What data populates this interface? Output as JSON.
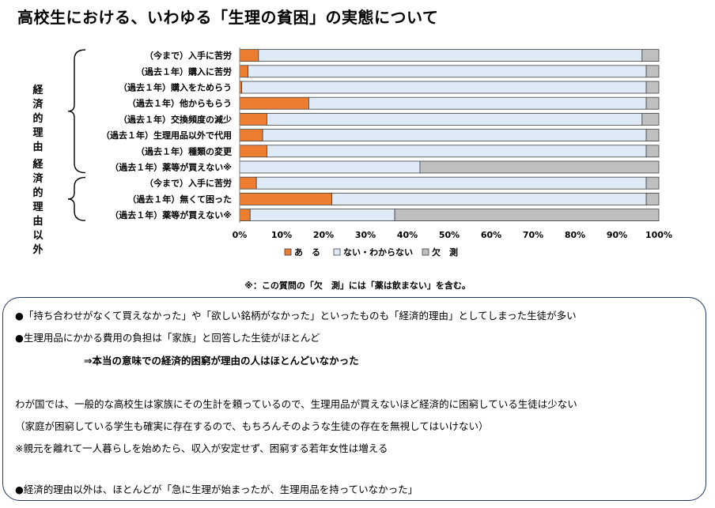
{
  "title": "高校生における、いわゆる「生理の貧困」の実態について",
  "chart_data": {
    "type": "bar",
    "orientation": "horizontal",
    "stacked": true,
    "categories": [
      "（今まで）入手に苦労",
      "（過去１年）購入に苦労",
      "（過去１年）購入をためらう",
      "（過去１年）他からもらう",
      "（過去１年）交換頻度の減少",
      "（過去１年）生理用品以外で代用",
      "（過去１年）種類の変更",
      "（過去１年）薬等が買えない※",
      "（今まで）入手に苦労",
      "（過去１年）無くて困った",
      "（過去１年）薬等が買えない※"
    ],
    "series": [
      {
        "name": "あ　る",
        "color": "#ED7D31",
        "values": [
          4.5,
          2,
          0.5,
          16.5,
          6.5,
          5.5,
          6.5,
          0,
          4,
          22,
          2.5
        ]
      },
      {
        "name": "ない・わからない",
        "color": "#DEEBF7",
        "values": [
          91.5,
          95,
          96.5,
          80.5,
          89.5,
          91.5,
          90.5,
          43,
          93,
          75,
          34.5
        ]
      },
      {
        "name": "欠　測",
        "color": "#BFBFBF",
        "values": [
          4,
          3,
          3,
          3,
          4,
          3,
          3,
          57,
          3,
          3,
          63
        ]
      }
    ],
    "xlim": [
      0,
      100
    ],
    "xticks": [
      "0%",
      "10%",
      "20%",
      "30%",
      "40%",
      "50%",
      "60%",
      "70%",
      "80%",
      "90%",
      "100%"
    ],
    "legend_position": "bottom",
    "groups": [
      {
        "label": "経済的理由",
        "categories": [
          0,
          7
        ]
      },
      {
        "label": "経済的理由以外",
        "categories": [
          8,
          10
        ]
      }
    ],
    "footnote": "※：この質問の「欠　測」には「薬は飲まない」を含む。"
  },
  "notes": [
    "●「持ち合わせがなくて買えなかった」や「欲しい銘柄がなかった」といったものも「経済的理由」としてしまった生徒が多い",
    "●生理用品にかかる費用の負担は「家族」と回答した生徒がほとんど",
    "⇒本当の意味での経済的困窮が理由の人はほとんどいなかった",
    "わが国では、一般的な高校生は家族にその生計を頼っているので、生理用品が買えないほど経済的に困窮している生徒は少ない",
    "（家庭が困窮している学生も確実に存在するので、もちろんそのような生徒の存在を無視してはいけない）",
    "※親元を離れて一人暮らしを始めたら、収入が安定せず、困窮する若年女性は増える",
    "●経済的理由以外は、ほとんどが「急に生理が始まったが、生理用品を持っていなかった」"
  ]
}
